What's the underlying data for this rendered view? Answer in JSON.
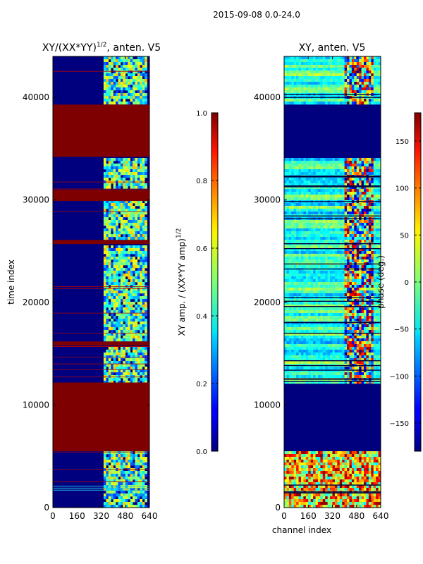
{
  "figure_title": "2015-09-08 0.0-24.0",
  "chart_data": [
    {
      "type": "heatmap",
      "title": "XY/(XX*YY)^{1/2}, anten. V5",
      "xlabel": "",
      "ylabel": "time index",
      "xticks": [
        0,
        160,
        320,
        480,
        640
      ],
      "yticks": [
        0,
        10000,
        20000,
        30000,
        40000
      ],
      "xlim": [
        0,
        640
      ],
      "ylim": [
        0,
        44000
      ],
      "colorbar": {
        "label": "XY amp. / (XX*YY amp)^{1/2}",
        "ticks": [
          "0.0",
          "0.2",
          "0.4",
          "0.6",
          "0.8",
          "1.0"
        ],
        "range": [
          0,
          1
        ]
      },
      "saturated_time_bands": [
        [
          5500,
          12200
        ],
        [
          15800,
          16200
        ],
        [
          25700,
          26100
        ],
        [
          29900,
          31000
        ],
        [
          34200,
          39300
        ]
      ]
    },
    {
      "type": "heatmap",
      "title": "XY, anten. V5",
      "xlabel": "channel index",
      "ylabel": "",
      "xticks": [
        0,
        160,
        320,
        480,
        640
      ],
      "yticks": [
        0,
        10000,
        20000,
        30000,
        40000
      ],
      "xlim": [
        0,
        640
      ],
      "ylim": [
        0,
        44000
      ],
      "colorbar": {
        "label": "phase (deg.)",
        "ticks": [
          "150",
          "100",
          "50",
          "0",
          "−50",
          "−100",
          "−150"
        ],
        "range": [
          -180,
          180
        ]
      },
      "flat_time_bands": [
        [
          5500,
          12200
        ],
        [
          34200,
          39300
        ]
      ]
    }
  ]
}
